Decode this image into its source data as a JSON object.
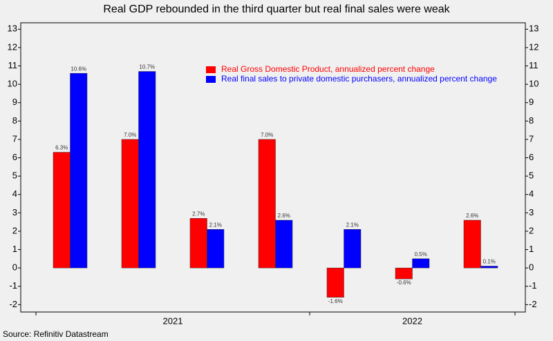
{
  "chart_data": {
    "type": "bar",
    "title": "Real GDP rebounded in the third quarter but real final sales were weak",
    "source": "Source: Refinitiv Datastream",
    "categories": [
      null,
      null,
      null,
      null,
      null,
      null,
      null
    ],
    "groups": [
      {
        "label": "2021",
        "count": 4
      },
      {
        "label": "2022",
        "count": 3
      }
    ],
    "series": [
      {
        "name": "Real Gross Domestic Product, annualized percent change",
        "color": "#ff0000",
        "values": [
          6.3,
          7.0,
          2.7,
          7.0,
          -1.6,
          -0.6,
          2.6
        ],
        "value_labels": [
          "6.3%",
          "7.0%",
          "2.7%",
          "7.0%",
          "-1.6%",
          "-0.6%",
          "2.6%"
        ]
      },
      {
        "name": "Real final sales to private domestic purchasers, annualized percent change",
        "color": "#0000ff",
        "values": [
          10.6,
          10.7,
          2.1,
          2.6,
          2.1,
          0.5,
          0.1
        ],
        "value_labels": [
          "10.6%",
          "10.7%",
          "2.1%",
          "2.6%",
          "2.1%",
          "0.5%",
          "0.1%"
        ]
      }
    ],
    "ylim": [
      -2.4,
      13.35
    ],
    "yticks": [
      -2,
      -1,
      0,
      1,
      2,
      3,
      4,
      5,
      6,
      7,
      8,
      9,
      10,
      11,
      12,
      13
    ],
    "y2lim": [
      -2.4,
      13.35
    ],
    "y2ticks": [
      -2,
      -1,
      0,
      1,
      2,
      3,
      4,
      5,
      6,
      7,
      8,
      9,
      10,
      11,
      12,
      13
    ],
    "grid": false
  }
}
